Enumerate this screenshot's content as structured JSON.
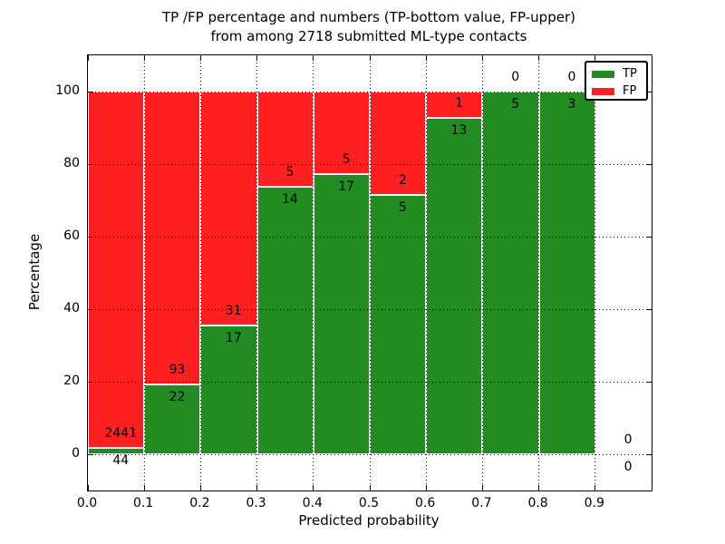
{
  "chart_data": {
    "type": "bar",
    "stacked": true,
    "title_line1": "TP /FP percentage and numbers (TP-bottom value, FP-upper)",
    "title_line2": "from among 2718 submitted ML-type contacts",
    "xlabel": "Predicted probability",
    "ylabel": "Percentage",
    "total_contacts": 2718,
    "categories": [
      "0.0-0.1",
      "0.1-0.2",
      "0.2-0.3",
      "0.3-0.4",
      "0.4-0.5",
      "0.5-0.6",
      "0.6-0.7",
      "0.7-0.8",
      "0.8-0.9",
      "0.9-1.0"
    ],
    "bin_width": 0.1,
    "series": [
      {
        "name": "TP",
        "color": "#228b22",
        "counts": [
          44,
          22,
          17,
          14,
          17,
          5,
          13,
          5,
          3,
          0
        ],
        "percent": [
          1.77,
          19.13,
          35.42,
          73.68,
          77.27,
          71.43,
          92.86,
          100,
          100,
          0
        ]
      },
      {
        "name": "FP",
        "color": "#fe2020",
        "counts": [
          2441,
          93,
          31,
          5,
          5,
          2,
          1,
          0,
          0,
          0
        ],
        "percent": [
          98.23,
          80.87,
          64.58,
          26.32,
          22.73,
          28.57,
          7.14,
          0,
          0,
          0
        ]
      }
    ],
    "x_ticks": [
      "0.0",
      "0.1",
      "0.2",
      "0.3",
      "0.4",
      "0.5",
      "0.6",
      "0.7",
      "0.8",
      "0.9"
    ],
    "x_tick_values": [
      0.0,
      0.1,
      0.2,
      0.3,
      0.4,
      0.5,
      0.6,
      0.7,
      0.8,
      0.9
    ],
    "y_ticks": [
      "0",
      "20",
      "40",
      "60",
      "80",
      "100"
    ],
    "y_tick_values": [
      0,
      20,
      40,
      60,
      80,
      100
    ],
    "xlim": [
      0.0,
      1.0
    ],
    "ylim": [
      -10,
      110
    ],
    "grid": true,
    "grid_style": "dotted",
    "legend_position": "upper right",
    "annotation_note": "TP count below segment boundary, FP count above segment boundary"
  }
}
